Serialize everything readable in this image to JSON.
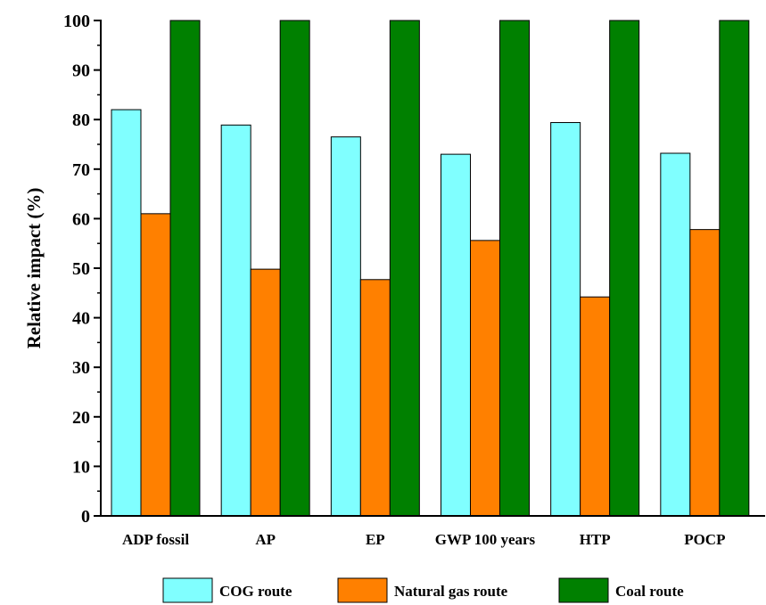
{
  "chart_data": {
    "type": "bar",
    "title": "",
    "xlabel": "",
    "ylabel": "Relative impact (%)",
    "ylim": [
      0,
      100
    ],
    "yticks": [
      0,
      10,
      20,
      30,
      40,
      50,
      60,
      70,
      80,
      90,
      100
    ],
    "categories": [
      "ADP fossil",
      "AP",
      "EP",
      "GWP 100 years",
      "HTP",
      "POCP"
    ],
    "series": [
      {
        "name": "COG route",
        "color": "#80ffff",
        "values": [
          82.0,
          78.9,
          76.5,
          73.0,
          79.4,
          73.2
        ]
      },
      {
        "name": "Natural gas route",
        "color": "#ff8000",
        "values": [
          61.0,
          49.8,
          47.7,
          55.6,
          44.2,
          57.8
        ]
      },
      {
        "name": "Coal route",
        "color": "#008000",
        "values": [
          100,
          100,
          100,
          100,
          100,
          100
        ]
      }
    ],
    "legend_position": "bottom",
    "grid": false
  }
}
